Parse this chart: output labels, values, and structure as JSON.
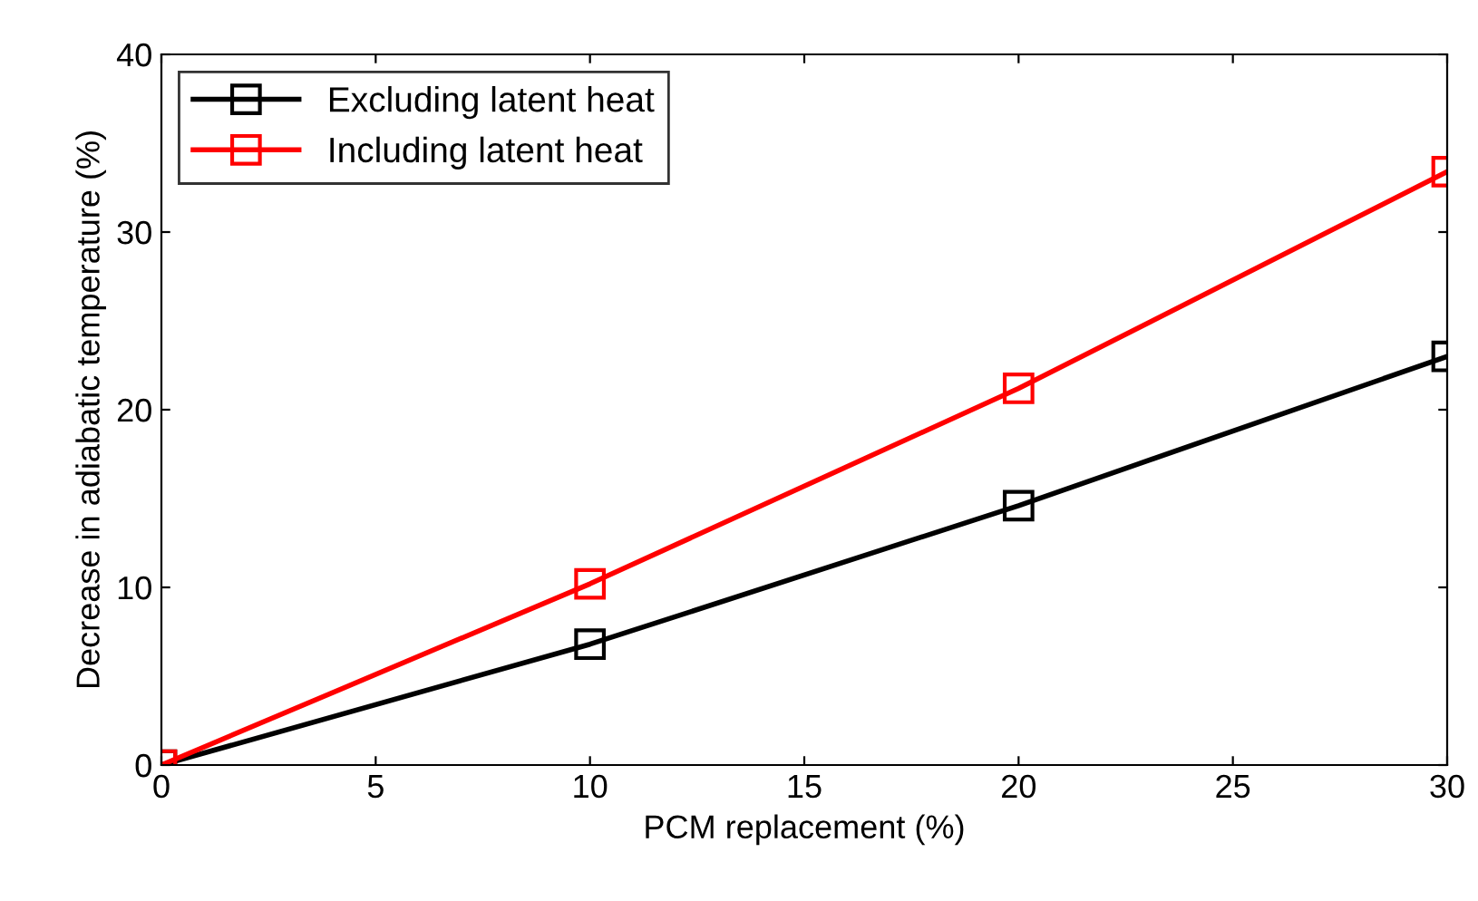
{
  "chart_data": {
    "type": "line",
    "xlabel": "PCM replacement (%)",
    "ylabel": "Decrease in adiabatic temperature (%)",
    "x": [
      0,
      10,
      20,
      30
    ],
    "series": [
      {
        "name": "Excluding latent heat",
        "color": "#000000",
        "values": [
          0,
          6.8,
          14.6,
          23.0
        ]
      },
      {
        "name": "Including latent heat",
        "color": "#ff0000",
        "values": [
          0,
          10.2,
          21.2,
          33.4
        ]
      }
    ],
    "xlim": [
      0,
      30
    ],
    "xticks": [
      0,
      5,
      10,
      15,
      20,
      25,
      30
    ],
    "ylim": [
      0,
      40
    ],
    "yticks": [
      0,
      10,
      20,
      30,
      40
    ],
    "marker": "square",
    "line_style": "solid",
    "legend": "top left",
    "grid": false
  }
}
